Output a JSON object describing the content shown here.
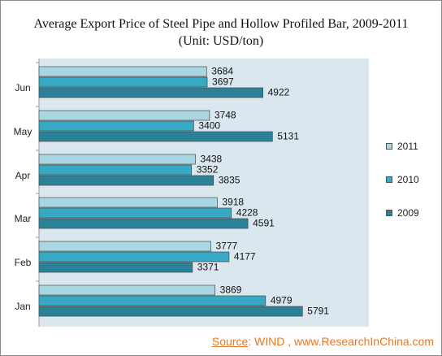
{
  "header": {
    "title": "Average Export Price of Steel Pipe and Hollow Profiled Bar, 2009-2011",
    "subtitle": "(Unit: USD/ton)"
  },
  "legend": {
    "items": [
      {
        "label": "2011",
        "color": "#a8d7e3"
      },
      {
        "label": "2010",
        "color": "#36a9c4"
      },
      {
        "label": "2009",
        "color": "#2b8197"
      }
    ]
  },
  "source": {
    "prefix": "Source",
    "rest": ": WIND , www.ResearchInChina.com"
  },
  "chart_data": {
    "type": "bar",
    "categories": [
      "Jun",
      "May",
      "Apr",
      "Mar",
      "Feb",
      "Jan"
    ],
    "series": [
      {
        "name": "2011",
        "values": [
          3684,
          3748,
          3438,
          3918,
          3777,
          3869
        ],
        "color": "#a8d7e3"
      },
      {
        "name": "2010",
        "values": [
          3697,
          3400,
          3352,
          4228,
          4177,
          4979
        ],
        "color": "#36a9c4"
      },
      {
        "name": "2009",
        "values": [
          4922,
          5131,
          3835,
          4591,
          3371,
          5791
        ],
        "color": "#2b8197"
      }
    ],
    "title": "Average Export Price of Steel Pipe and Hollow Profiled Bar, 2009-2011",
    "subtitle": "(Unit: USD/ton)",
    "xlabel": "",
    "ylabel": "",
    "xlim": [
      0,
      7000
    ],
    "grid": false,
    "legend": "right"
  }
}
